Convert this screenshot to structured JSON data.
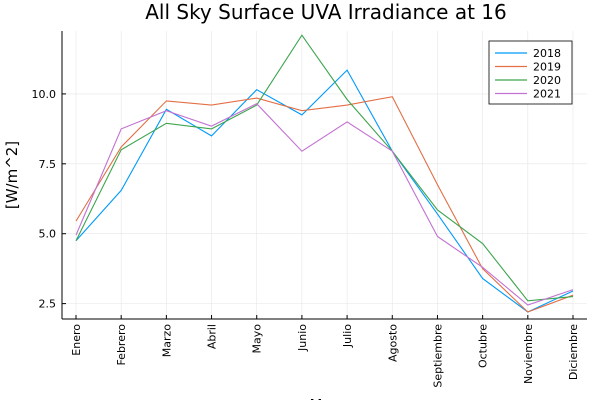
{
  "chart_data": {
    "type": "line",
    "title": "All Sky Surface UVA Irradiance at 16",
    "xlabel": "M",
    "ylabel": "[W/m^2]",
    "categories": [
      "Enero",
      "Febrero",
      "Marzo",
      "Abril",
      "Mayo",
      "Junio",
      "Julio",
      "Agosto",
      "Septiembre",
      "Octubre",
      "Noviembre",
      "Diciembre"
    ],
    "ylim": [
      1.95,
      12.25
    ],
    "yticks": [
      2.5,
      5.0,
      7.5,
      10.0
    ],
    "ytick_labels": [
      "2.5",
      "5.0",
      "7.5",
      "10.0"
    ],
    "grid": true,
    "legend_position": "top-right",
    "series": [
      {
        "name": "2018",
        "color": "#009AFA",
        "values": [
          4.75,
          6.55,
          9.45,
          8.5,
          10.15,
          9.25,
          10.85,
          7.95,
          5.7,
          3.4,
          2.2,
          2.95
        ]
      },
      {
        "name": "2019",
        "color": "#E26F46",
        "values": [
          5.45,
          8.1,
          9.75,
          9.6,
          9.85,
          9.4,
          9.6,
          9.9,
          6.75,
          3.75,
          2.2,
          2.8
        ]
      },
      {
        "name": "2020",
        "color": "#3DA44D",
        "values": [
          4.75,
          8.0,
          8.95,
          8.75,
          9.6,
          12.1,
          9.8,
          7.95,
          5.85,
          4.65,
          2.6,
          2.75
        ]
      },
      {
        "name": "2021",
        "color": "#C271D2",
        "values": [
          4.95,
          8.75,
          9.4,
          8.85,
          9.65,
          7.95,
          9.0,
          7.95,
          4.9,
          3.8,
          2.45,
          3.0
        ]
      }
    ]
  }
}
